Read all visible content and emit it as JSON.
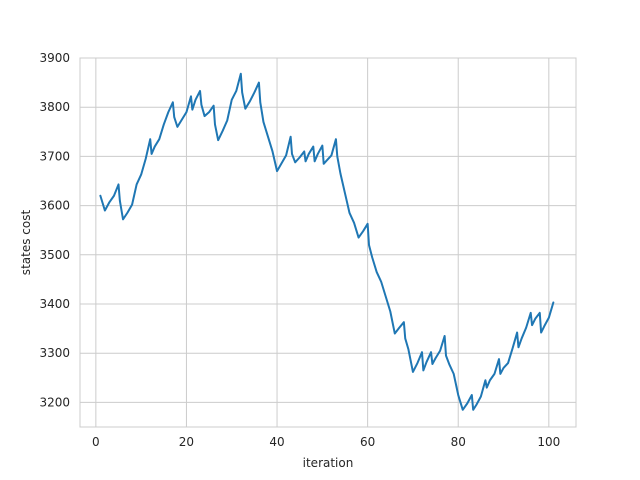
{
  "chart_data": {
    "type": "line",
    "title": "",
    "xlabel": "iteration",
    "ylabel": "states cost",
    "xlim": [
      -3.5,
      106
    ],
    "ylim": [
      3150,
      3900
    ],
    "xticks": [
      0,
      20,
      40,
      60,
      80,
      100
    ],
    "yticks": [
      3200,
      3300,
      3400,
      3500,
      3600,
      3700,
      3800,
      3900
    ],
    "grid": true,
    "line_color": "#1f77b4",
    "series": [
      {
        "x": [
          1,
          2,
          3,
          4,
          5,
          5.3,
          6,
          7,
          8,
          9,
          10,
          11,
          12,
          12.3,
          13,
          14,
          15,
          16,
          17,
          17.3,
          18,
          19,
          20,
          21,
          21.3,
          22,
          23,
          23.3,
          24,
          25,
          26,
          26.3,
          27,
          28,
          29,
          30,
          31,
          32,
          32.3,
          33,
          34,
          35,
          36,
          36.3,
          37,
          38,
          39,
          40,
          41,
          42,
          43,
          43.3,
          44,
          45,
          46,
          46.3,
          47,
          48,
          48.3,
          49,
          50,
          50.3,
          51,
          52,
          53,
          53.3,
          54,
          55,
          56,
          57,
          58,
          59,
          60,
          60.3,
          61,
          62,
          63,
          64,
          65,
          66,
          67,
          68,
          68.3,
          69,
          70,
          71,
          72,
          72.3,
          73,
          74,
          74.3,
          75,
          76,
          77,
          77.3,
          78,
          79,
          80,
          81,
          82,
          83,
          83.3,
          84,
          85,
          86,
          86.3,
          87,
          88,
          89,
          89.3,
          90,
          91,
          92,
          93,
          93.3,
          94,
          95,
          96,
          96.3,
          97,
          98,
          98.3,
          99,
          100,
          101
        ],
        "y": [
          3620,
          3590,
          3607,
          3620,
          3643,
          3610,
          3572,
          3586,
          3602,
          3643,
          3663,
          3695,
          3735,
          3705,
          3720,
          3735,
          3765,
          3790,
          3810,
          3780,
          3760,
          3775,
          3790,
          3822,
          3795,
          3815,
          3833,
          3805,
          3782,
          3790,
          3803,
          3765,
          3733,
          3752,
          3773,
          3815,
          3833,
          3868,
          3830,
          3797,
          3812,
          3830,
          3850,
          3810,
          3770,
          3740,
          3710,
          3670,
          3686,
          3702,
          3740,
          3705,
          3688,
          3698,
          3710,
          3690,
          3705,
          3720,
          3690,
          3705,
          3722,
          3685,
          3692,
          3702,
          3735,
          3700,
          3665,
          3625,
          3585,
          3565,
          3535,
          3548,
          3563,
          3520,
          3495,
          3465,
          3445,
          3415,
          3385,
          3340,
          3352,
          3363,
          3330,
          3308,
          3262,
          3280,
          3302,
          3265,
          3282,
          3302,
          3278,
          3290,
          3305,
          3335,
          3295,
          3278,
          3258,
          3215,
          3185,
          3198,
          3215,
          3185,
          3195,
          3212,
          3245,
          3230,
          3245,
          3258,
          3288,
          3258,
          3270,
          3280,
          3310,
          3342,
          3312,
          3330,
          3352,
          3382,
          3357,
          3370,
          3382,
          3342,
          3355,
          3372,
          3403
        ]
      }
    ]
  }
}
